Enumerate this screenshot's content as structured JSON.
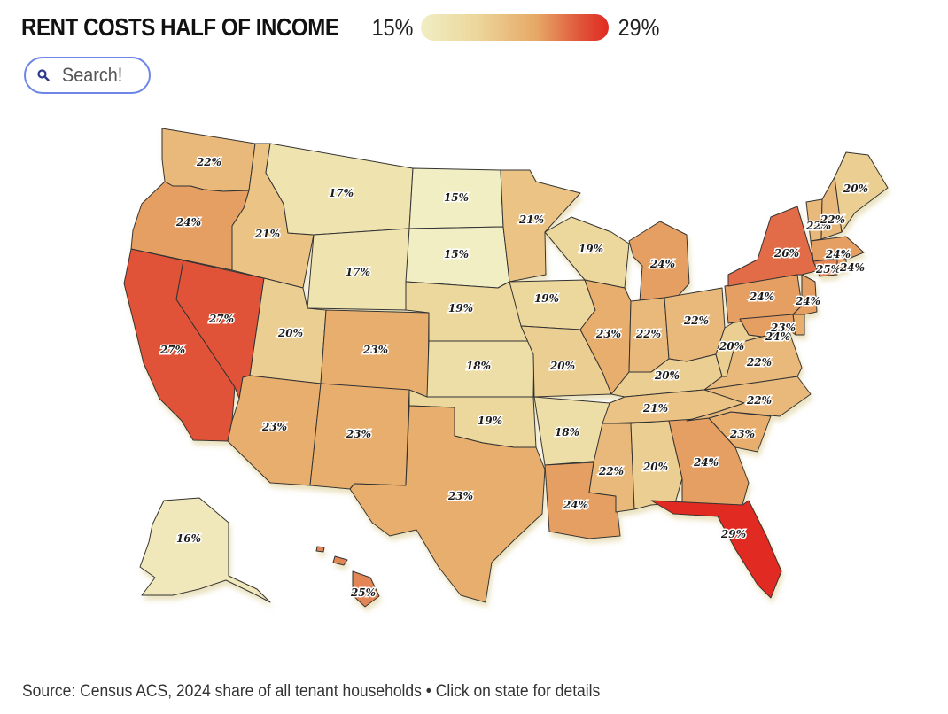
{
  "header": {
    "title": "RENT COSTS HALF OF INCOME",
    "legend_min": "15%",
    "legend_max": "29%"
  },
  "search": {
    "placeholder": "Search!"
  },
  "source": "Source: Census ACS, 2024 share of all tenant households • Click on state for details",
  "colors": {
    "low": "#f1eec4",
    "mid": "#e6a766",
    "high": "#e02a22",
    "search_border": "#6f86e8"
  },
  "icons": {
    "search": "search-icon"
  },
  "states": [
    {
      "id": "WA",
      "label": "22%",
      "value": 22
    },
    {
      "id": "OR",
      "label": "24%",
      "value": 24
    },
    {
      "id": "CA",
      "label": "27%",
      "value": 27
    },
    {
      "id": "NV",
      "label": "27%",
      "value": 27
    },
    {
      "id": "ID",
      "label": "21%",
      "value": 21
    },
    {
      "id": "MT",
      "label": "17%",
      "value": 17
    },
    {
      "id": "WY",
      "label": "17%",
      "value": 17
    },
    {
      "id": "UT",
      "label": "20%",
      "value": 20
    },
    {
      "id": "AZ",
      "label": "23%",
      "value": 23
    },
    {
      "id": "CO",
      "label": "23%",
      "value": 23
    },
    {
      "id": "NM",
      "label": "23%",
      "value": 23
    },
    {
      "id": "ND",
      "label": "15%",
      "value": 15
    },
    {
      "id": "SD",
      "label": "15%",
      "value": 15
    },
    {
      "id": "NE",
      "label": "19%",
      "value": 19
    },
    {
      "id": "KS",
      "label": "18%",
      "value": 18
    },
    {
      "id": "OK",
      "label": "19%",
      "value": 19
    },
    {
      "id": "TX",
      "label": "23%",
      "value": 23
    },
    {
      "id": "MN",
      "label": "21%",
      "value": 21
    },
    {
      "id": "IA",
      "label": "19%",
      "value": 19
    },
    {
      "id": "MO",
      "label": "20%",
      "value": 20
    },
    {
      "id": "AR",
      "label": "18%",
      "value": 18
    },
    {
      "id": "LA",
      "label": "24%",
      "value": 24
    },
    {
      "id": "WI",
      "label": "19%",
      "value": 19
    },
    {
      "id": "IL",
      "label": "23%",
      "value": 23
    },
    {
      "id": "MI",
      "label": "24%",
      "value": 24
    },
    {
      "id": "IN",
      "label": "22%",
      "value": 22
    },
    {
      "id": "OH",
      "label": "22%",
      "value": 22
    },
    {
      "id": "KY",
      "label": "20%",
      "value": 20
    },
    {
      "id": "TN",
      "label": "21%",
      "value": 21
    },
    {
      "id": "MS",
      "label": "22%",
      "value": 22
    },
    {
      "id": "AL",
      "label": "20%",
      "value": 20
    },
    {
      "id": "GA",
      "label": "24%",
      "value": 24
    },
    {
      "id": "FL",
      "label": "29%",
      "value": 29
    },
    {
      "id": "SC",
      "label": "23%",
      "value": 23
    },
    {
      "id": "NC",
      "label": "22%",
      "value": 22
    },
    {
      "id": "VA",
      "label": "22%",
      "value": 22
    },
    {
      "id": "WV",
      "label": "20%",
      "value": 20
    },
    {
      "id": "PA",
      "label": "24%",
      "value": 24
    },
    {
      "id": "NY",
      "label": "26%",
      "value": 26
    },
    {
      "id": "NJ",
      "label": "24%",
      "value": 24
    },
    {
      "id": "DE",
      "label": "23%",
      "value": 23
    },
    {
      "id": "VT",
      "label": "22%",
      "value": 22
    },
    {
      "id": "NH",
      "label": "22%",
      "value": 22
    },
    {
      "id": "ME",
      "label": "20%",
      "value": 20
    },
    {
      "id": "MA",
      "label": "24%",
      "value": 24
    },
    {
      "id": "CT",
      "label": "25%",
      "value": 25
    },
    {
      "id": "RI",
      "label": "24%",
      "value": 24
    },
    {
      "id": "MD",
      "label": "24%",
      "value": 24
    },
    {
      "id": "AK",
      "label": "16%",
      "value": 16
    },
    {
      "id": "HI",
      "label": "25%",
      "value": 25
    }
  ]
}
